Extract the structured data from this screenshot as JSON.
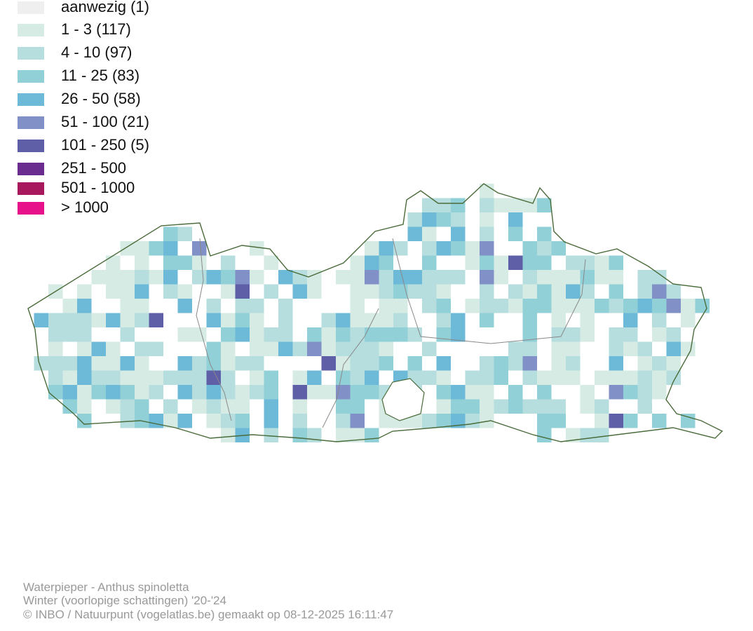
{
  "legend": {
    "items": [
      {
        "label": "aanwezig (1)",
        "color": "#efefef"
      },
      {
        "label": "1 - 3 (117)",
        "color": "#d6ebe3"
      },
      {
        "label": "4 - 10 (97)",
        "color": "#b6dede"
      },
      {
        "label": "11 - 25 (83)",
        "color": "#92d0d8"
      },
      {
        "label": "26 - 50 (58)",
        "color": "#6db9d8"
      },
      {
        "label": "51 - 100 (21)",
        "color": "#8290c8"
      },
      {
        "label": "101 - 250 (5)",
        "color": "#5f5fa8"
      },
      {
        "label": "251 - 500",
        "color": "#6a2c8e"
      },
      {
        "label": "501 - 1000",
        "color": "#a8185c"
      },
      {
        "label": "> 1000",
        "color": "#e7128a"
      }
    ]
  },
  "footer": {
    "lines": [
      "Waterpieper - Anthus spinoletta",
      "Winter (voorlopige schattingen) '20-'24",
      "© INBO / Natuurpunt (vogelatlas.be) gemaakt op 08-12-2025 16:11:47"
    ]
  }
}
